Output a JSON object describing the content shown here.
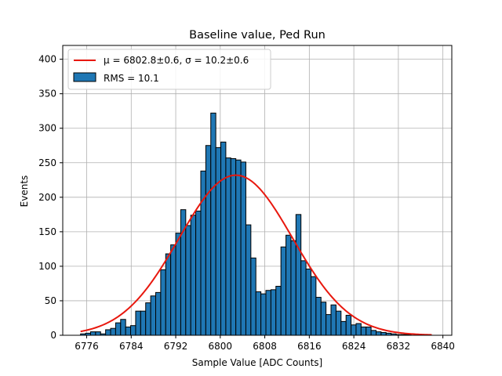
{
  "chart_data": {
    "type": "bar",
    "title": "Baseline value, Ped Run",
    "xlabel": "Sample Value [ADC Counts]",
    "ylabel": "Events",
    "xlim": [
      6771.7,
      6841.6
    ],
    "ylim": [
      0,
      420
    ],
    "x_ticks": [
      6776,
      6784,
      6792,
      6800,
      6808,
      6816,
      6824,
      6832,
      6840
    ],
    "y_ticks": [
      0,
      50,
      100,
      150,
      200,
      250,
      300,
      350,
      400
    ],
    "grid": true,
    "bar_color": "#1f77b4",
    "bar_edge_color": "#000000",
    "fit_color": "#e8180e",
    "bin_start": 6774.9,
    "bin_width": 0.9,
    "values": [
      2,
      3,
      5,
      5,
      2,
      8,
      10,
      18,
      23,
      12,
      14,
      35,
      35,
      47,
      57,
      62,
      95,
      118,
      131,
      148,
      182,
      159,
      174,
      180,
      238,
      275,
      322,
      272,
      280,
      257,
      256,
      254,
      251,
      160,
      112,
      63,
      60,
      65,
      66,
      71,
      128,
      145,
      137,
      175,
      108,
      96,
      85,
      55,
      48,
      30,
      44,
      35,
      20,
      29,
      15,
      17,
      12,
      12,
      7,
      5,
      4,
      3,
      2,
      1,
      1,
      1,
      0,
      0,
      0,
      0
    ],
    "fit": {
      "type": "gaussian",
      "mu": 6802.8,
      "sigma": 10.2,
      "amplitude": 232,
      "x_range": [
        6774.9,
        6838.0
      ]
    },
    "legend": {
      "position": "top-left",
      "entries": [
        {
          "kind": "line",
          "label": "μ = 6802.8±0.6, σ = 10.2±0.6"
        },
        {
          "kind": "patch",
          "label": "RMS = 10.1"
        }
      ]
    }
  }
}
